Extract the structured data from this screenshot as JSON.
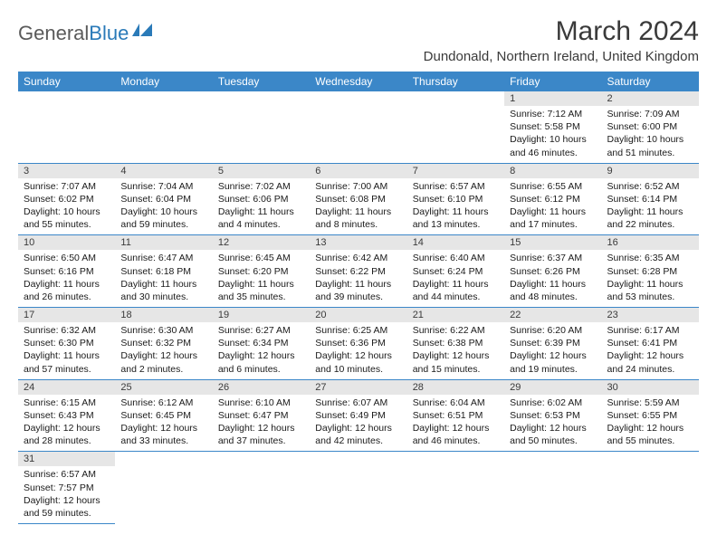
{
  "brand": {
    "name1": "General",
    "name2": "Blue"
  },
  "title": "March 2024",
  "location": "Dundonald, Northern Ireland, United Kingdom",
  "colors": {
    "header_bg": "#3b87c8",
    "header_text": "#ffffff",
    "daynum_bg": "#e6e6e6",
    "border": "#3b87c8",
    "brand_gray": "#5a5a5a",
    "brand_blue": "#2a7ab8"
  },
  "weekdays": [
    "Sunday",
    "Monday",
    "Tuesday",
    "Wednesday",
    "Thursday",
    "Friday",
    "Saturday"
  ],
  "weeks": [
    [
      null,
      null,
      null,
      null,
      null,
      {
        "n": "1",
        "sr": "Sunrise: 7:12 AM",
        "ss": "Sunset: 5:58 PM",
        "dl": "Daylight: 10 hours and 46 minutes."
      },
      {
        "n": "2",
        "sr": "Sunrise: 7:09 AM",
        "ss": "Sunset: 6:00 PM",
        "dl": "Daylight: 10 hours and 51 minutes."
      }
    ],
    [
      {
        "n": "3",
        "sr": "Sunrise: 7:07 AM",
        "ss": "Sunset: 6:02 PM",
        "dl": "Daylight: 10 hours and 55 minutes."
      },
      {
        "n": "4",
        "sr": "Sunrise: 7:04 AM",
        "ss": "Sunset: 6:04 PM",
        "dl": "Daylight: 10 hours and 59 minutes."
      },
      {
        "n": "5",
        "sr": "Sunrise: 7:02 AM",
        "ss": "Sunset: 6:06 PM",
        "dl": "Daylight: 11 hours and 4 minutes."
      },
      {
        "n": "6",
        "sr": "Sunrise: 7:00 AM",
        "ss": "Sunset: 6:08 PM",
        "dl": "Daylight: 11 hours and 8 minutes."
      },
      {
        "n": "7",
        "sr": "Sunrise: 6:57 AM",
        "ss": "Sunset: 6:10 PM",
        "dl": "Daylight: 11 hours and 13 minutes."
      },
      {
        "n": "8",
        "sr": "Sunrise: 6:55 AM",
        "ss": "Sunset: 6:12 PM",
        "dl": "Daylight: 11 hours and 17 minutes."
      },
      {
        "n": "9",
        "sr": "Sunrise: 6:52 AM",
        "ss": "Sunset: 6:14 PM",
        "dl": "Daylight: 11 hours and 22 minutes."
      }
    ],
    [
      {
        "n": "10",
        "sr": "Sunrise: 6:50 AM",
        "ss": "Sunset: 6:16 PM",
        "dl": "Daylight: 11 hours and 26 minutes."
      },
      {
        "n": "11",
        "sr": "Sunrise: 6:47 AM",
        "ss": "Sunset: 6:18 PM",
        "dl": "Daylight: 11 hours and 30 minutes."
      },
      {
        "n": "12",
        "sr": "Sunrise: 6:45 AM",
        "ss": "Sunset: 6:20 PM",
        "dl": "Daylight: 11 hours and 35 minutes."
      },
      {
        "n": "13",
        "sr": "Sunrise: 6:42 AM",
        "ss": "Sunset: 6:22 PM",
        "dl": "Daylight: 11 hours and 39 minutes."
      },
      {
        "n": "14",
        "sr": "Sunrise: 6:40 AM",
        "ss": "Sunset: 6:24 PM",
        "dl": "Daylight: 11 hours and 44 minutes."
      },
      {
        "n": "15",
        "sr": "Sunrise: 6:37 AM",
        "ss": "Sunset: 6:26 PM",
        "dl": "Daylight: 11 hours and 48 minutes."
      },
      {
        "n": "16",
        "sr": "Sunrise: 6:35 AM",
        "ss": "Sunset: 6:28 PM",
        "dl": "Daylight: 11 hours and 53 minutes."
      }
    ],
    [
      {
        "n": "17",
        "sr": "Sunrise: 6:32 AM",
        "ss": "Sunset: 6:30 PM",
        "dl": "Daylight: 11 hours and 57 minutes."
      },
      {
        "n": "18",
        "sr": "Sunrise: 6:30 AM",
        "ss": "Sunset: 6:32 PM",
        "dl": "Daylight: 12 hours and 2 minutes."
      },
      {
        "n": "19",
        "sr": "Sunrise: 6:27 AM",
        "ss": "Sunset: 6:34 PM",
        "dl": "Daylight: 12 hours and 6 minutes."
      },
      {
        "n": "20",
        "sr": "Sunrise: 6:25 AM",
        "ss": "Sunset: 6:36 PM",
        "dl": "Daylight: 12 hours and 10 minutes."
      },
      {
        "n": "21",
        "sr": "Sunrise: 6:22 AM",
        "ss": "Sunset: 6:38 PM",
        "dl": "Daylight: 12 hours and 15 minutes."
      },
      {
        "n": "22",
        "sr": "Sunrise: 6:20 AM",
        "ss": "Sunset: 6:39 PM",
        "dl": "Daylight: 12 hours and 19 minutes."
      },
      {
        "n": "23",
        "sr": "Sunrise: 6:17 AM",
        "ss": "Sunset: 6:41 PM",
        "dl": "Daylight: 12 hours and 24 minutes."
      }
    ],
    [
      {
        "n": "24",
        "sr": "Sunrise: 6:15 AM",
        "ss": "Sunset: 6:43 PM",
        "dl": "Daylight: 12 hours and 28 minutes."
      },
      {
        "n": "25",
        "sr": "Sunrise: 6:12 AM",
        "ss": "Sunset: 6:45 PM",
        "dl": "Daylight: 12 hours and 33 minutes."
      },
      {
        "n": "26",
        "sr": "Sunrise: 6:10 AM",
        "ss": "Sunset: 6:47 PM",
        "dl": "Daylight: 12 hours and 37 minutes."
      },
      {
        "n": "27",
        "sr": "Sunrise: 6:07 AM",
        "ss": "Sunset: 6:49 PM",
        "dl": "Daylight: 12 hours and 42 minutes."
      },
      {
        "n": "28",
        "sr": "Sunrise: 6:04 AM",
        "ss": "Sunset: 6:51 PM",
        "dl": "Daylight: 12 hours and 46 minutes."
      },
      {
        "n": "29",
        "sr": "Sunrise: 6:02 AM",
        "ss": "Sunset: 6:53 PM",
        "dl": "Daylight: 12 hours and 50 minutes."
      },
      {
        "n": "30",
        "sr": "Sunrise: 5:59 AM",
        "ss": "Sunset: 6:55 PM",
        "dl": "Daylight: 12 hours and 55 minutes."
      }
    ],
    [
      {
        "n": "31",
        "sr": "Sunrise: 6:57 AM",
        "ss": "Sunset: 7:57 PM",
        "dl": "Daylight: 12 hours and 59 minutes."
      },
      null,
      null,
      null,
      null,
      null,
      null
    ]
  ]
}
